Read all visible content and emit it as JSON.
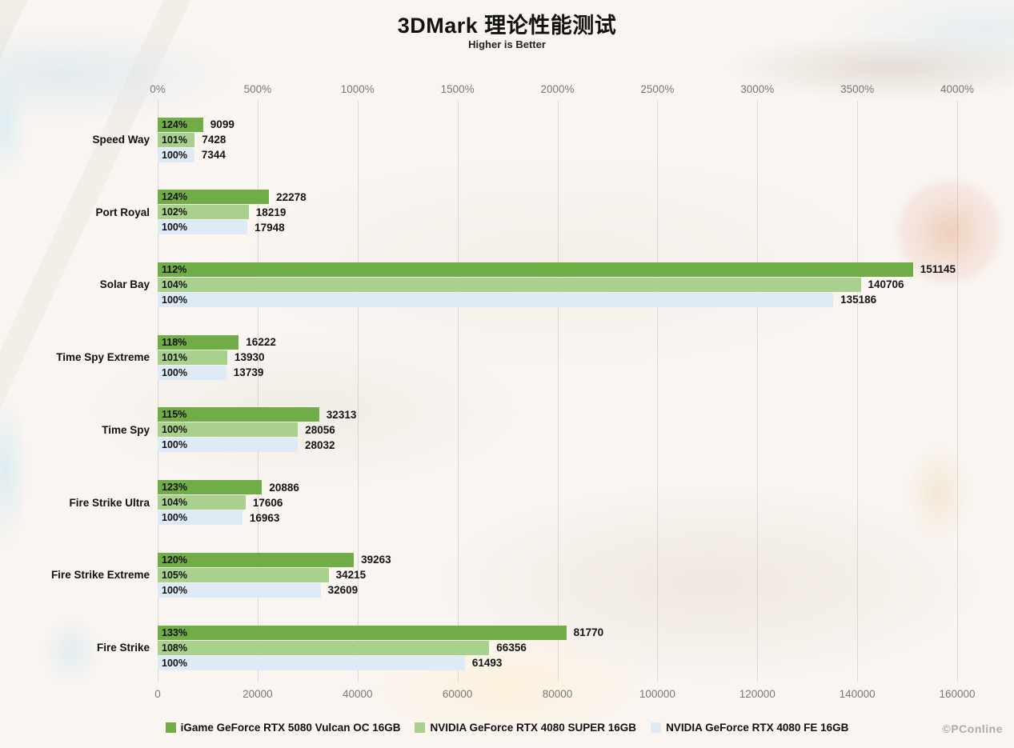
{
  "header": {
    "title": "3DMark 理论性能测试",
    "subtitle": "Higher is Better"
  },
  "watermark": "©PConline",
  "chart_data": {
    "type": "bar",
    "orientation": "horizontal",
    "title": "3DMark 理论性能测试",
    "subtitle": "Higher is Better",
    "grid": true,
    "legend_position": "bottom",
    "categories": [
      "Speed Way",
      "Port Royal",
      "Solar Bay",
      "Time Spy Extreme",
      "Time Spy",
      "Fire Strike Ultra",
      "Fire Strike Extreme",
      "Fire Strike"
    ],
    "series": [
      {
        "name": "iGame GeForce RTX 5080 Vulcan OC 16GB",
        "color": "#70AD47",
        "values": [
          9099,
          22278,
          151145,
          16222,
          32313,
          20886,
          39263,
          81770
        ],
        "percent_labels": [
          "124%",
          "124%",
          "112%",
          "118%",
          "115%",
          "123%",
          "120%",
          "133%"
        ]
      },
      {
        "name": "NVIDIA GeForce RTX 4080 SUPER 16GB",
        "color": "#A9D18E",
        "values": [
          7428,
          18219,
          140706,
          13930,
          28056,
          17606,
          34215,
          66356
        ],
        "percent_labels": [
          "101%",
          "102%",
          "104%",
          "101%",
          "100%",
          "104%",
          "105%",
          "108%"
        ]
      },
      {
        "name": "NVIDIA GeForce RTX 4080 FE 16GB",
        "color": "#DEEBF7",
        "values": [
          7344,
          17948,
          135186,
          13739,
          28032,
          16963,
          32609,
          61493
        ],
        "percent_labels": [
          "100%",
          "100%",
          "100%",
          "100%",
          "100%",
          "100%",
          "100%",
          "100%"
        ]
      }
    ],
    "top_axis": {
      "label_suffix": "%",
      "ticks": [
        "0%",
        "500%",
        "1000%",
        "1500%",
        "2000%",
        "2500%",
        "3000%",
        "3500%",
        "4000%"
      ],
      "max": 4000
    },
    "bottom_axis": {
      "ticks": [
        "0",
        "20000",
        "40000",
        "60000",
        "80000",
        "100000",
        "120000",
        "140000",
        "160000"
      ],
      "max": 160000
    },
    "axis_label_color": "#787878",
    "grid_color": "rgba(150,150,150,0.30)"
  }
}
